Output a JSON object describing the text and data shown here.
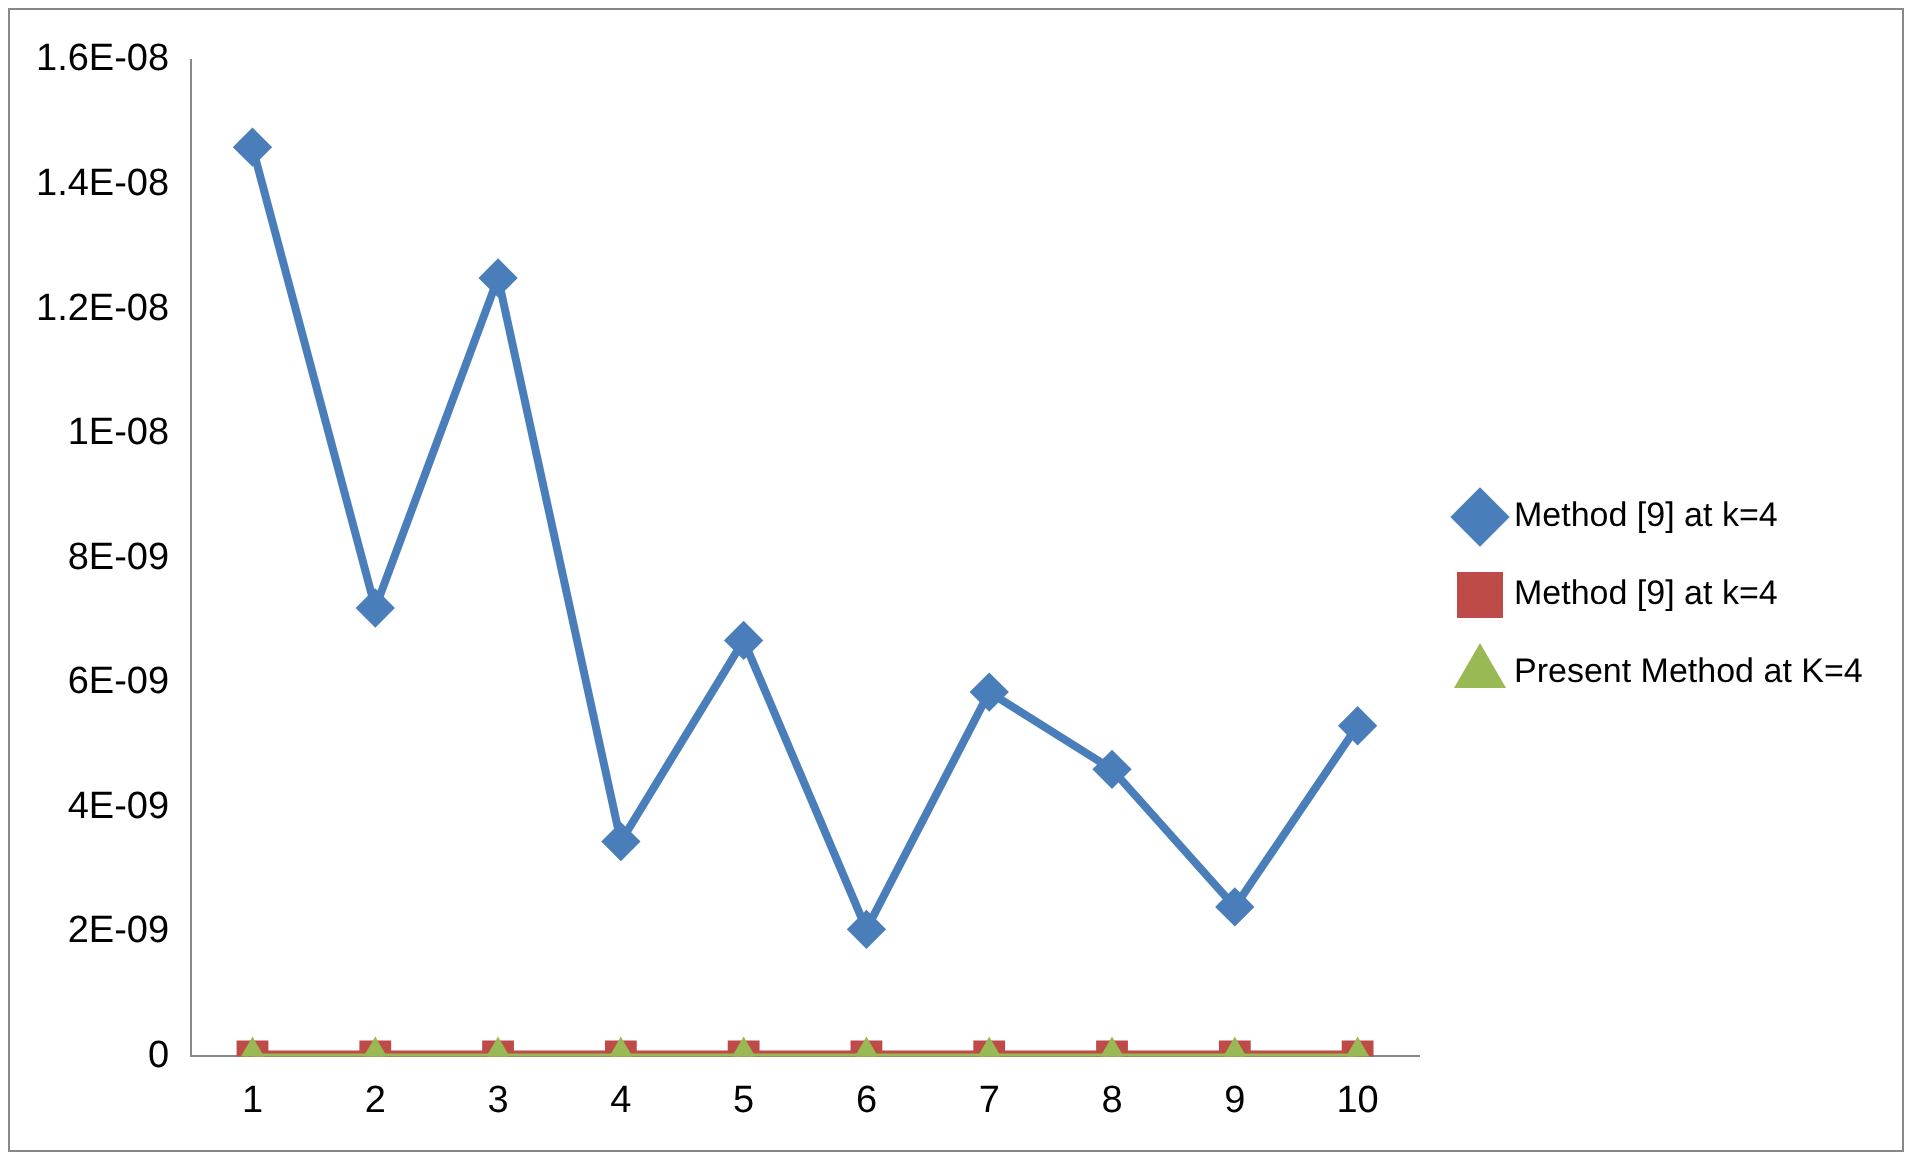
{
  "chart_data": {
    "type": "line",
    "categories": [
      "1",
      "2",
      "3",
      "4",
      "5",
      "6",
      "7",
      "8",
      "9",
      "10"
    ],
    "series": [
      {
        "name": "Method [9] at k=4",
        "color": "#4a7ebb",
        "marker": "diamond",
        "values": [
          1.46e-08,
          7.2e-09,
          1.25e-08,
          3.45e-09,
          6.68e-09,
          2.04e-09,
          5.85e-09,
          4.61e-09,
          2.4e-09,
          5.31e-09
        ]
      },
      {
        "name": "Method [9] at k=4",
        "color": "#be4b48",
        "marker": "square",
        "values": [
          0,
          0,
          0,
          0,
          0,
          0,
          0,
          0,
          0,
          0
        ]
      },
      {
        "name": "Present Method at K=4",
        "color": "#98b954",
        "marker": "triangle",
        "values": [
          0,
          0,
          0,
          0,
          0,
          0,
          0,
          0,
          0,
          0
        ]
      }
    ],
    "ylim": [
      0,
      1.6e-08
    ],
    "yticks": [
      0,
      {
        "value": 2e-09,
        "label": "2E-09"
      },
      {
        "value": 4e-09,
        "label": "4E-09"
      },
      {
        "value": 6e-09,
        "label": "6E-09"
      },
      {
        "value": 8e-09,
        "label": "8E-09"
      },
      {
        "value": 1e-08,
        "label": "1E-08"
      },
      {
        "value": 1.2e-08,
        "label": "1.2E-08"
      },
      {
        "value": 1.4e-08,
        "label": "1.4E-08"
      },
      {
        "value": 1.6e-08,
        "label": "1.6E-08"
      }
    ],
    "grid": false,
    "legend": "right"
  }
}
